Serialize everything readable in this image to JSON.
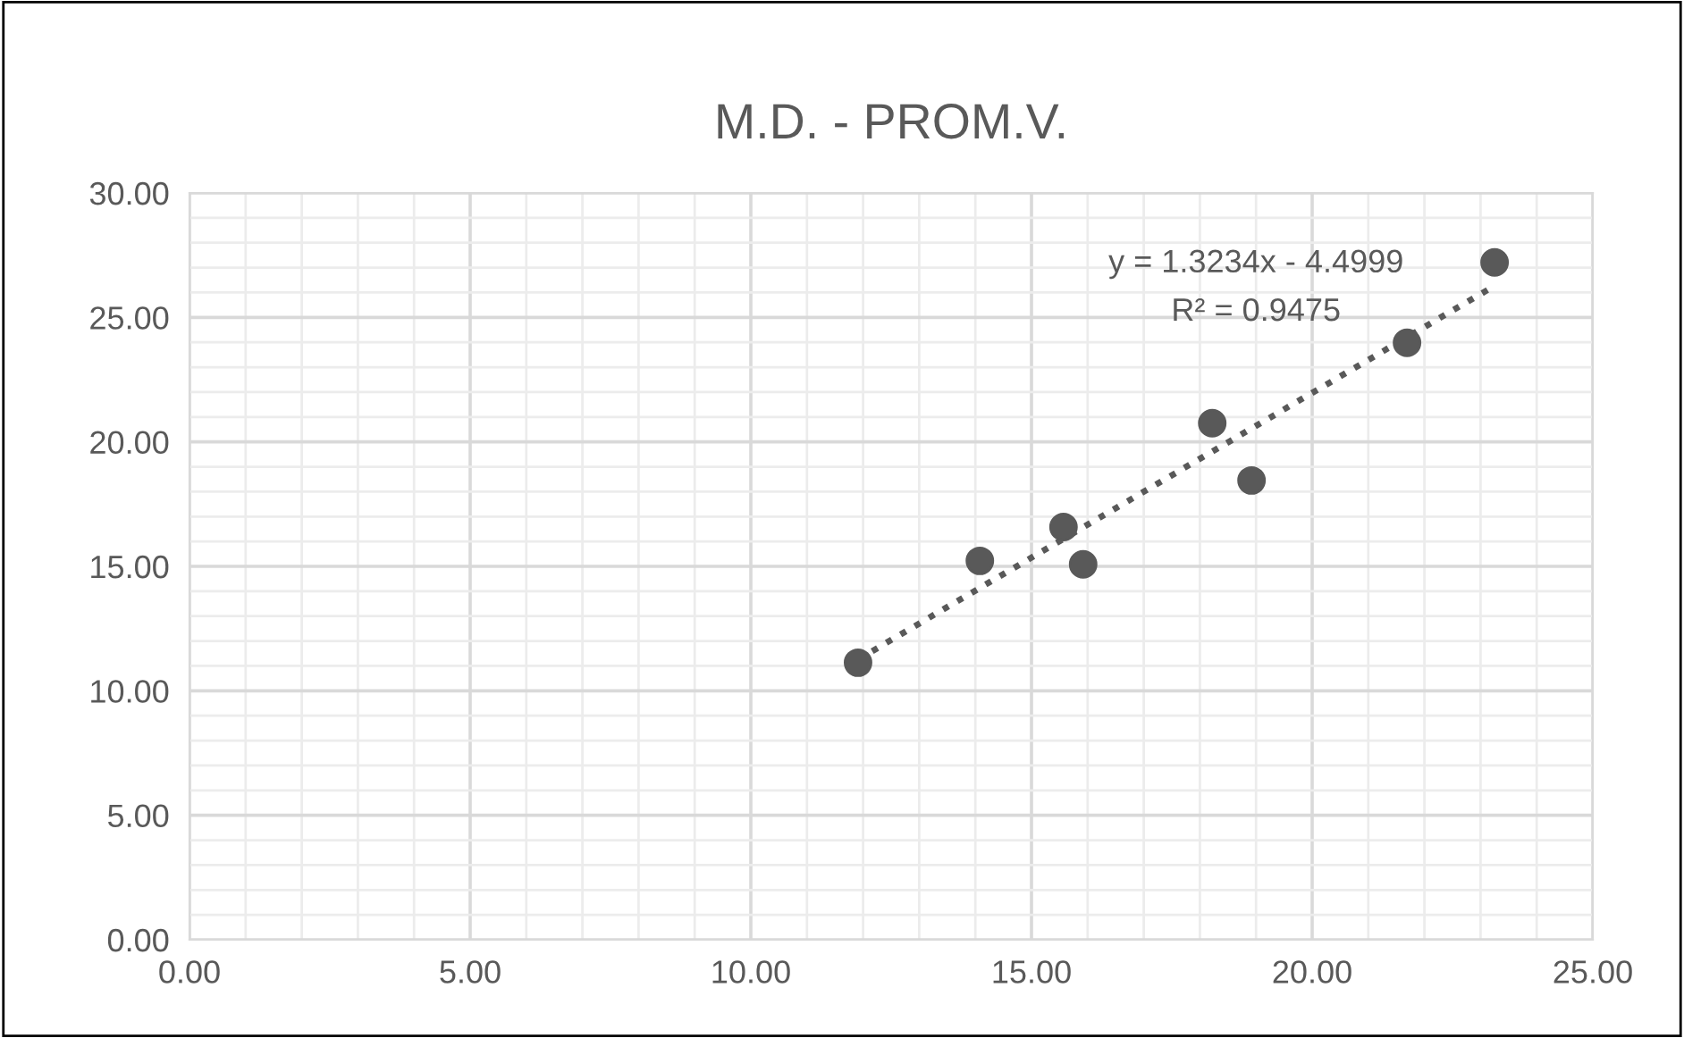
{
  "chart_data": {
    "type": "scatter",
    "title": "M.D. - PROM.V.",
    "x": [
      11.91,
      14.08,
      15.57,
      15.92,
      18.22,
      18.92,
      21.69,
      23.25
    ],
    "series": [
      {
        "color": "#595959",
        "marker": "circle",
        "values": [
          11.13,
          15.22,
          16.58,
          15.08,
          20.75,
          18.45,
          23.98,
          27.21
        ]
      },
      {
        "type": "line",
        "color": "#595959",
        "x": [
          11.91,
          23.25
        ],
        "values": [
          11.26,
          26.27
        ],
        "line_style": "dotted",
        "marker": "none"
      }
    ],
    "annotations": [
      "y = 1.3234x - 4.4999",
      "R² = 0.9475"
    ],
    "xlim": [
      0,
      25
    ],
    "ylim": [
      0,
      30
    ],
    "xticks": [
      {
        "value": 0,
        "label": "0.00"
      },
      {
        "value": 5,
        "label": "5.00"
      },
      {
        "value": 10,
        "label": "10.00"
      },
      {
        "value": 15,
        "label": "15.00"
      },
      {
        "value": 20,
        "label": "20.00"
      },
      {
        "value": 25,
        "label": "25.00"
      }
    ],
    "yticks": [
      {
        "value": 0,
        "label": "0.00"
      },
      {
        "value": 5,
        "label": "5.00"
      },
      {
        "value": 10,
        "label": "10.00"
      },
      {
        "value": 15,
        "label": "15.00"
      },
      {
        "value": 20,
        "label": "20.00"
      },
      {
        "value": 25,
        "label": "25.00"
      },
      {
        "value": 30,
        "label": "30.00"
      }
    ],
    "grid": true
  }
}
